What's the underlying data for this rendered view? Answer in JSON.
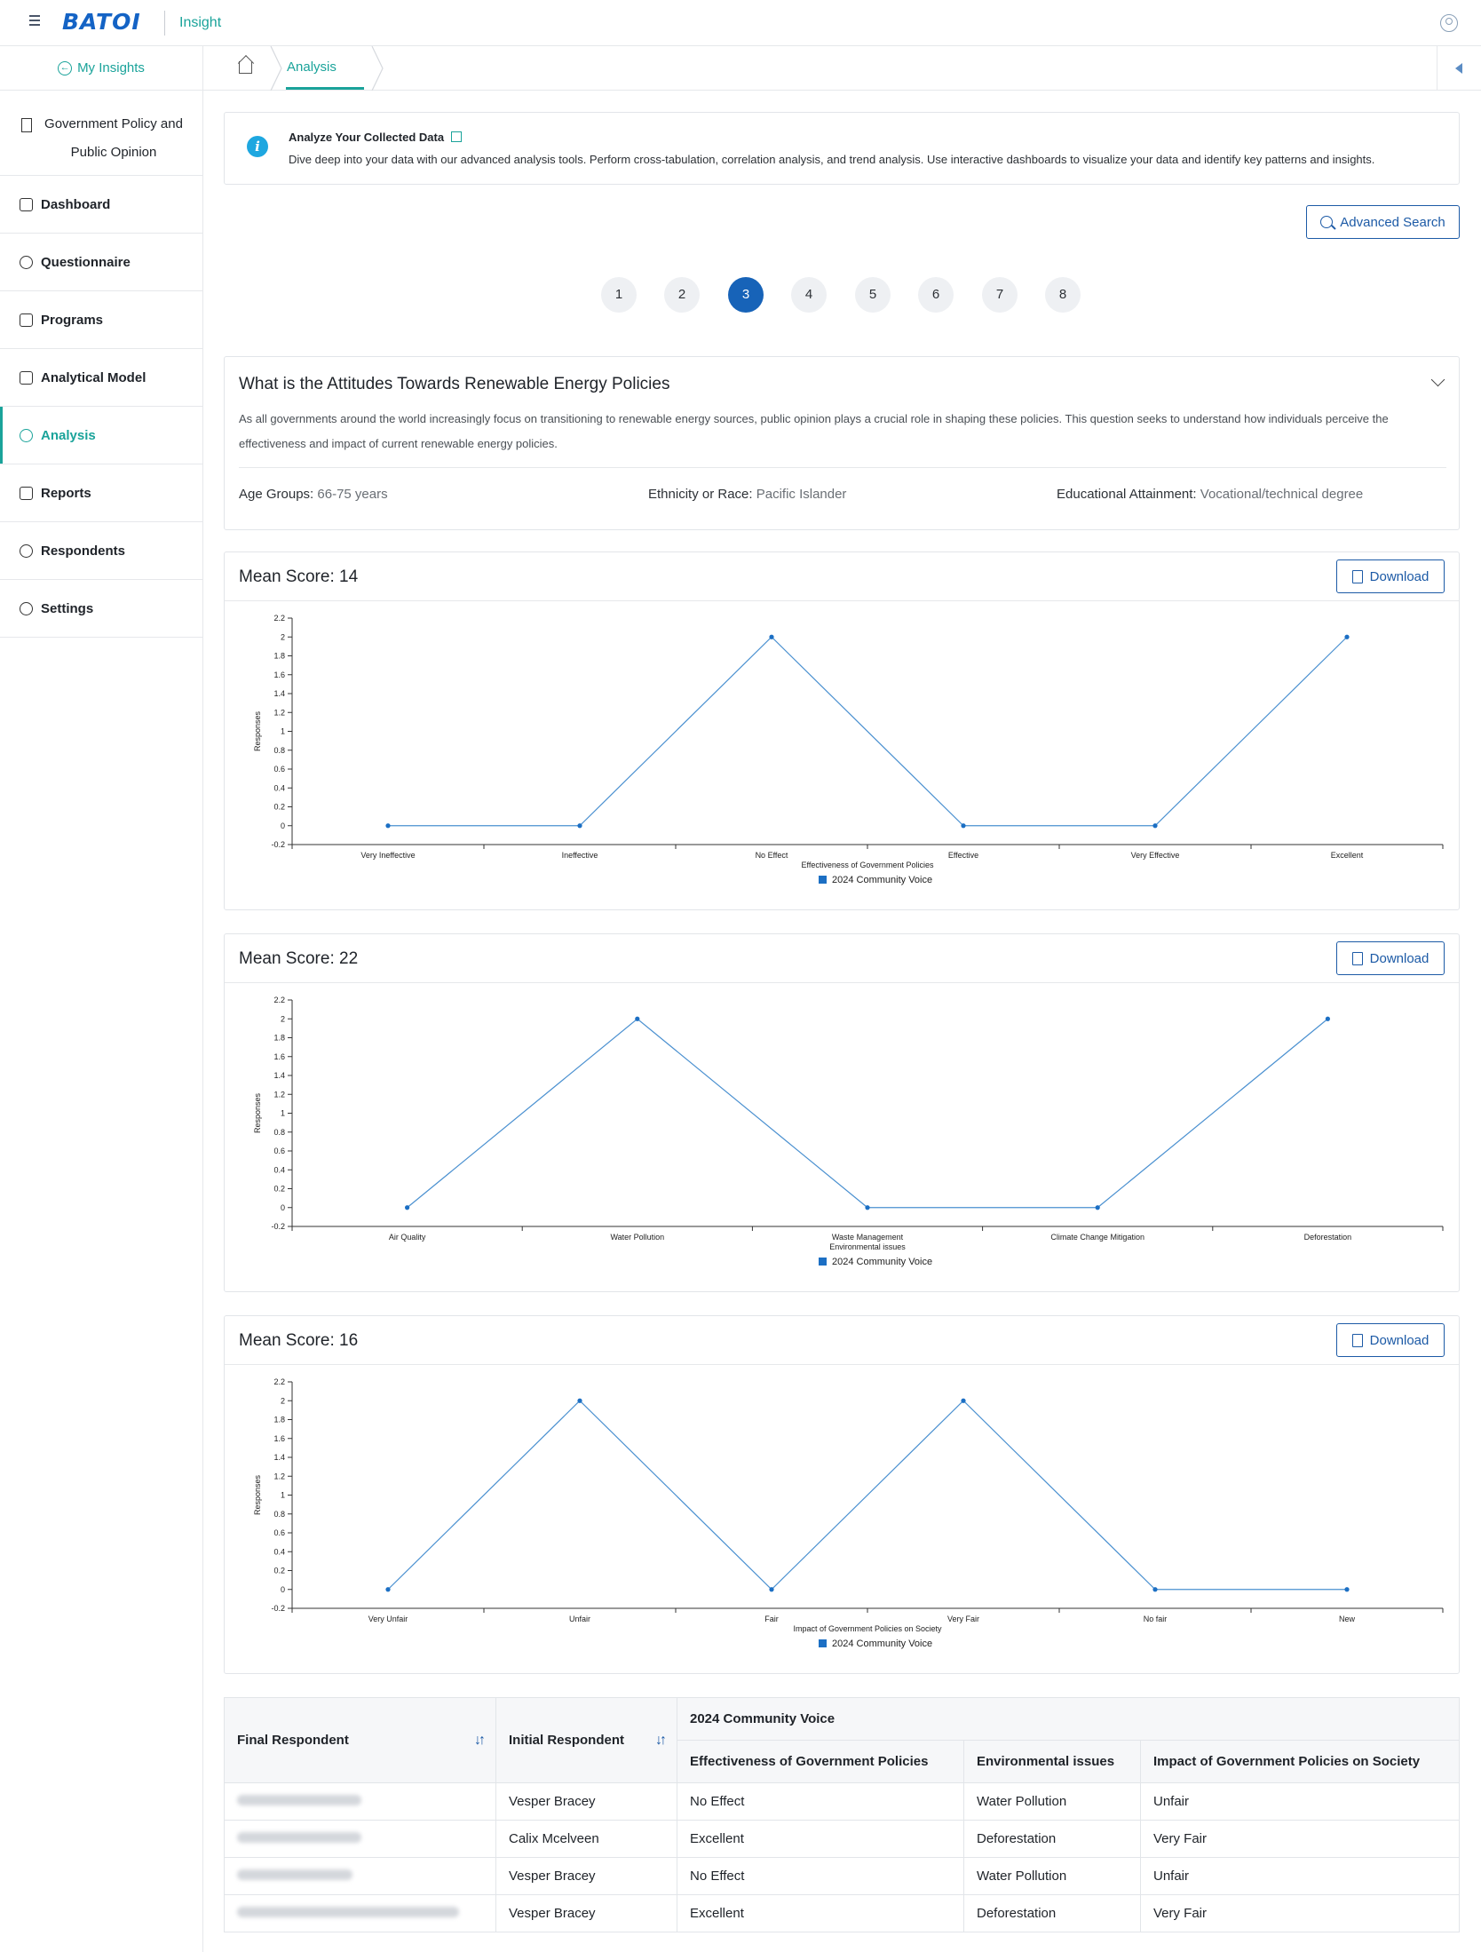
{
  "app": {
    "brand": "BATOI",
    "product": "Insight"
  },
  "sidebar": {
    "back_label": "My Insights",
    "project_line1": "Government Policy and",
    "project_line2": "Public Opinion",
    "items": [
      {
        "label": "Dashboard",
        "icon": "home-icon"
      },
      {
        "label": "Questionnaire",
        "icon": "question-icon"
      },
      {
        "label": "Programs",
        "icon": "list-icon"
      },
      {
        "label": "Analytical Model",
        "icon": "model-icon"
      },
      {
        "label": "Analysis",
        "icon": "chart-pie-icon",
        "active": true
      },
      {
        "label": "Reports",
        "icon": "report-icon"
      },
      {
        "label": "Respondents",
        "icon": "users-icon"
      },
      {
        "label": "Settings",
        "icon": "gear-icon"
      }
    ]
  },
  "breadcrumb": {
    "current": "Analysis"
  },
  "info": {
    "title": "Analyze Your Collected Data",
    "text": "Dive deep into your data with our advanced analysis tools. Perform cross-tabulation, correlation analysis, and trend analysis. Use interactive dashboards to visualize your data and identify key patterns and insights."
  },
  "advanced_search_label": "Advanced Search",
  "pager": {
    "pages": [
      "1",
      "2",
      "3",
      "4",
      "5",
      "6",
      "7",
      "8"
    ],
    "current": "3"
  },
  "question": {
    "title": "What is the Attitudes Towards Renewable Energy Policies",
    "description": "As all governments around the world increasingly focus on transitioning to renewable energy sources, public opinion plays a crucial role in shaping these policies. This question seeks to understand how individuals perceive the effectiveness and impact of current renewable energy policies.",
    "filters": [
      {
        "label": "Age Groups:",
        "value": "66-75 years"
      },
      {
        "label": "Ethnicity or Race:",
        "value": "Pacific Islander"
      },
      {
        "label": "Educational Attainment:",
        "value": "Vocational/technical degree"
      }
    ]
  },
  "download_label": "Download",
  "accent_colors": {
    "teal": "#1aa39a",
    "blue": "#1c5aa6",
    "series": "#4a90d0"
  },
  "chart_data": [
    {
      "type": "line",
      "title": "Mean Score: 14",
      "categories": [
        "Very Ineffective",
        "Ineffective",
        "No Effect",
        "Effective",
        "Very Effective",
        "Excellent"
      ],
      "series": [
        {
          "name": "2024 Community Voice",
          "values": [
            0,
            0,
            2,
            0,
            0,
            2
          ]
        }
      ],
      "xlabel": "Effectiveness of Government Policies",
      "ylabel": "Responses",
      "ylim": [
        -0.2,
        2.2
      ],
      "yticks": [
        "-0.2",
        "0",
        "0.2",
        "0.4",
        "0.6",
        "0.8",
        "1",
        "1.2",
        "1.4",
        "1.6",
        "1.8",
        "2",
        "2.2"
      ],
      "legend": "bottom"
    },
    {
      "type": "line",
      "title": "Mean Score: 22",
      "categories": [
        "Air Quality",
        "Water Pollution",
        "Waste Management",
        "Climate Change Mitigation",
        "Deforestation"
      ],
      "series": [
        {
          "name": "2024 Community Voice",
          "values": [
            0,
            2,
            0,
            0,
            2
          ]
        }
      ],
      "xlabel": "Environmental issues",
      "ylabel": "Responses",
      "ylim": [
        -0.2,
        2.2
      ],
      "yticks": [
        "-0.2",
        "0",
        "0.2",
        "0.4",
        "0.6",
        "0.8",
        "1",
        "1.2",
        "1.4",
        "1.6",
        "1.8",
        "2",
        "2.2"
      ],
      "legend": "bottom"
    },
    {
      "type": "line",
      "title": "Mean Score: 16",
      "categories": [
        "Very Unfair",
        "Unfair",
        "Fair",
        "Very Fair",
        "No fair",
        "New"
      ],
      "series": [
        {
          "name": "2024 Community Voice",
          "values": [
            0,
            2,
            0,
            2,
            0,
            0
          ]
        }
      ],
      "xlabel": "Impact of Government Policies on Society",
      "ylabel": "Responses",
      "ylim": [
        -0.2,
        2.2
      ],
      "yticks": [
        "-0.2",
        "0",
        "0.2",
        "0.4",
        "0.6",
        "0.8",
        "1",
        "1.2",
        "1.4",
        "1.6",
        "1.8",
        "2",
        "2.2"
      ],
      "legend": "bottom"
    }
  ],
  "table": {
    "headers": {
      "final": "Final Respondent",
      "initial": "Initial Respondent",
      "group": "2024 Community Voice",
      "col1": "Effectiveness of Government Policies",
      "col2": "Environmental issues",
      "col3": "Impact of Government Policies on Society"
    },
    "rows": [
      {
        "initial": "Vesper Bracey",
        "c1": "No Effect",
        "c2": "Water Pollution",
        "c3": "Unfair"
      },
      {
        "initial": "Calix Mcelveen",
        "c1": "Excellent",
        "c2": "Deforestation",
        "c3": "Very Fair"
      },
      {
        "initial": "Vesper Bracey",
        "c1": "No Effect",
        "c2": "Water Pollution",
        "c3": "Unfair"
      },
      {
        "initial": "Vesper Bracey",
        "c1": "Excellent",
        "c2": "Deforestation",
        "c3": "Very Fair"
      }
    ]
  }
}
